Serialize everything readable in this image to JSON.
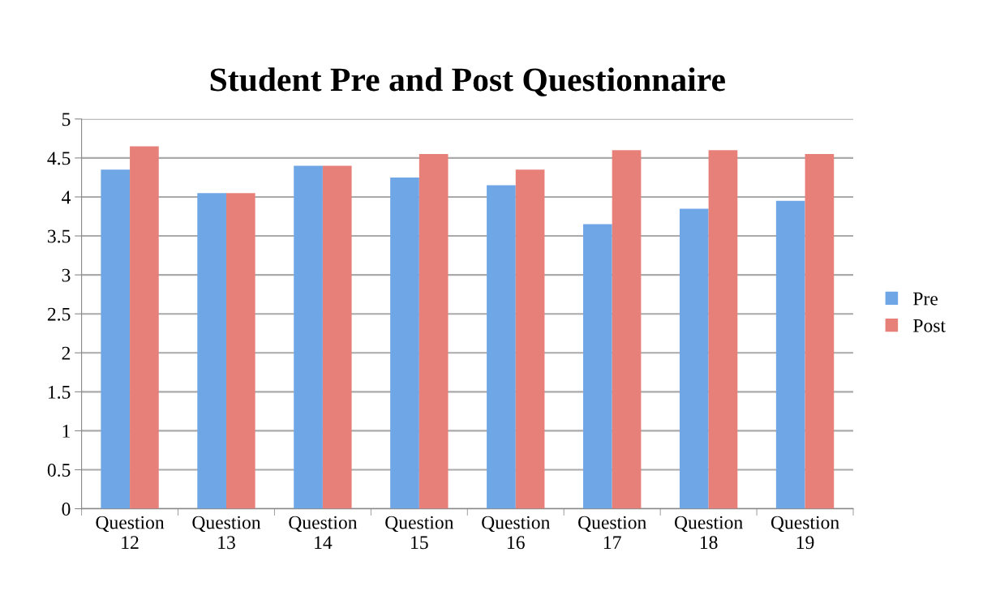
{
  "chart_data": {
    "type": "bar",
    "title": "Student Pre and Post Questionnaire",
    "categories": [
      "Question 12",
      "Question 13",
      "Question 14",
      "Question 15",
      "Question 16",
      "Question 17",
      "Question 18",
      "Question 19"
    ],
    "series": [
      {
        "name": "Pre",
        "color": "#6fa6e6",
        "values": [
          4.35,
          4.05,
          4.4,
          4.25,
          4.15,
          3.65,
          3.85,
          3.95
        ]
      },
      {
        "name": "Post",
        "color": "#e8807a",
        "values": [
          4.65,
          4.05,
          4.4,
          4.55,
          4.35,
          4.6,
          4.6,
          4.55
        ]
      }
    ],
    "ylim": [
      0,
      5
    ],
    "yticks": [
      0,
      0.5,
      1,
      1.5,
      2,
      2.5,
      3,
      3.5,
      4,
      4.5,
      5
    ],
    "grid": "y",
    "legend": "right"
  }
}
